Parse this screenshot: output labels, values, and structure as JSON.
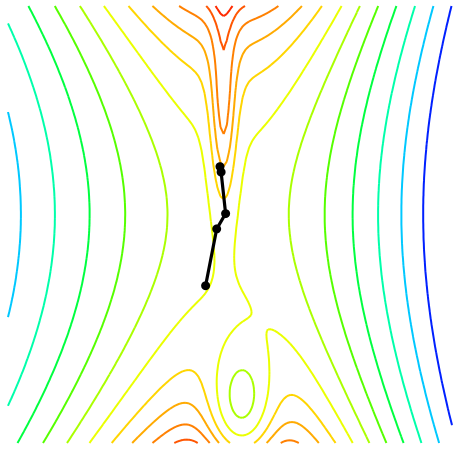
{
  "chart_data": {
    "type": "contour",
    "title": "",
    "xlabel": "",
    "ylabel": "",
    "axes_visible": false,
    "grid": false,
    "colormap": "hsv",
    "x_range": [
      -1,
      1
    ],
    "y_range": [
      -1,
      1
    ],
    "levels": [
      0.02,
      0.05,
      0.1,
      0.18,
      0.28,
      0.4,
      0.55,
      0.72,
      0.92,
      1.15,
      1.42,
      1.72,
      2.05
    ],
    "level_colors": [
      "#ff0000",
      "#ff2a00",
      "#ff5500",
      "#ff8000",
      "#ffaa00",
      "#ffd500",
      "#eaff00",
      "#aaff00",
      "#55ff00",
      "#00ff40",
      "#00ffaa",
      "#00c8ff",
      "#0020ff"
    ],
    "optimizer_path": {
      "x": [
        -0.11,
        -0.06,
        -0.02,
        -0.04,
        -0.045
      ],
      "y": [
        -0.28,
        -0.02,
        0.05,
        0.24,
        0.265
      ]
    }
  }
}
